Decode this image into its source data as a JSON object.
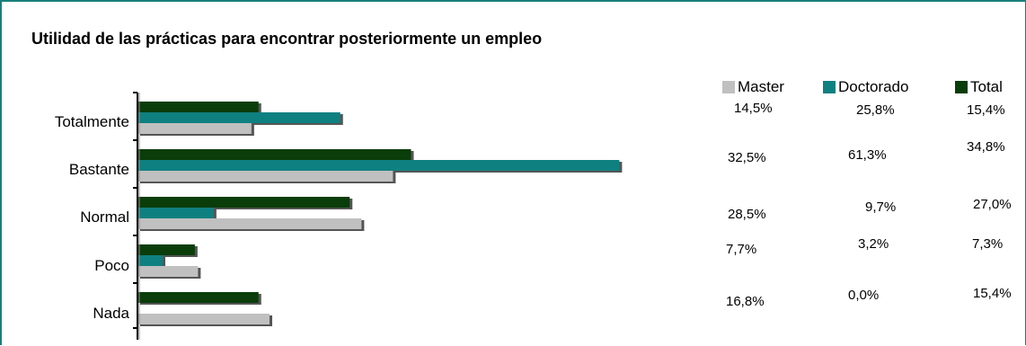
{
  "chart_data": {
    "type": "bar",
    "orientation": "horizontal",
    "title": "Utilidad de las prácticas para encontrar posteriormente un empleo",
    "categories": [
      "Totalmente",
      "Bastante",
      "Normal",
      "Poco",
      "Nada"
    ],
    "series": [
      {
        "name": "Master",
        "color": "#c0c0c0",
        "values": [
          14.5,
          32.5,
          28.5,
          7.7,
          16.8
        ]
      },
      {
        "name": "Doctorado",
        "color": "#0f8080",
        "values": [
          25.8,
          61.3,
          9.7,
          3.2,
          0.0
        ]
      },
      {
        "name": "Total",
        "color": "#0a3d0a",
        "values": [
          15.4,
          34.8,
          27.0,
          7.3,
          15.4
        ]
      }
    ],
    "value_labels": [
      [
        "14,5%",
        "25,8%",
        "15,4%"
      ],
      [
        "32,5%",
        "61,3%",
        "34,8%"
      ],
      [
        "28,5%",
        "9,7%",
        "27,0%"
      ],
      [
        "7,7%",
        "3,2%",
        "7,3%"
      ],
      [
        "16,8%",
        "0,0%",
        "15,4%"
      ]
    ],
    "grid": false,
    "legend_position": "top-right"
  }
}
